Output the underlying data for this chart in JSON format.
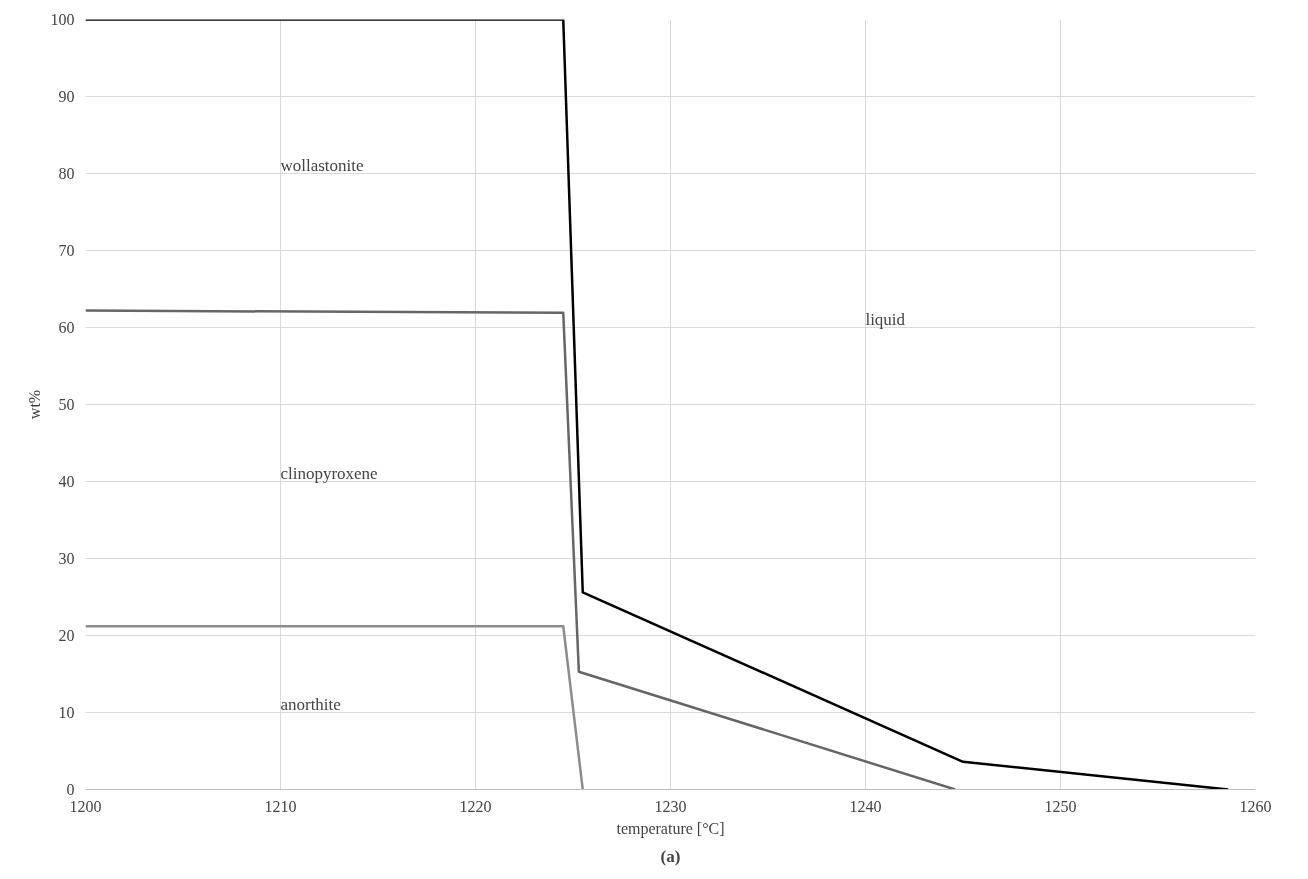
{
  "chart_data": {
    "type": "line",
    "xlabel": "temperature [°C]",
    "ylabel": "wt%",
    "xlim": [
      1200,
      1260
    ],
    "xticks": [
      1200,
      1210,
      1220,
      1230,
      1240,
      1250,
      1260
    ],
    "ylim": [
      0,
      100
    ],
    "yticks": [
      0,
      10,
      20,
      30,
      40,
      50,
      60,
      70,
      80,
      90,
      100
    ],
    "grid": true,
    "line_style": "solid",
    "marker": "none",
    "series": [
      {
        "color": "#000000",
        "x": [
          1200,
          1224.5,
          1225.5,
          1245.0,
          1258.6
        ],
        "values": [
          100,
          100,
          25.6,
          3.6,
          0
        ]
      },
      {
        "color": "#666666",
        "x": [
          1200,
          1224.5,
          1225.3,
          1244.6
        ],
        "values": [
          62.2,
          61.9,
          15.3,
          0
        ]
      },
      {
        "color": "#8c8c8c",
        "x": [
          1200,
          1224.5,
          1225.5
        ],
        "values": [
          21.2,
          21.2,
          0
        ]
      }
    ],
    "annotations": [
      "wollastonite",
      "clinopyroxene",
      "anorthite",
      "liquid",
      "(a)"
    ]
  }
}
